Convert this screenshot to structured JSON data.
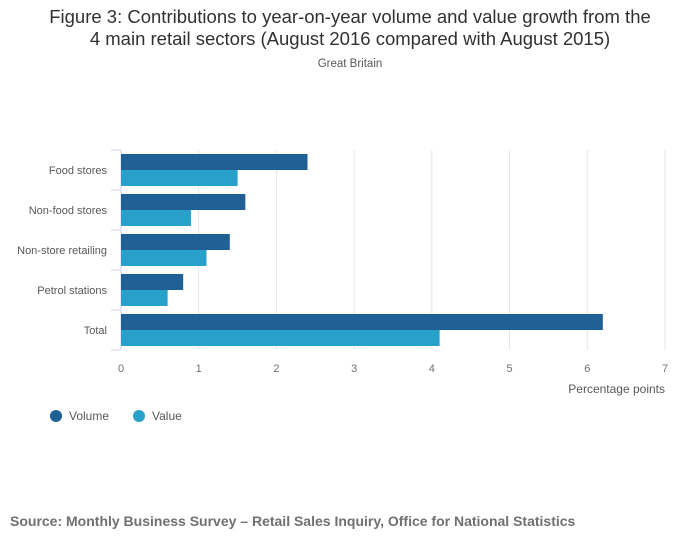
{
  "chart_data": {
    "type": "bar",
    "orientation": "horizontal",
    "title": "Figure 3: Contributions to year-on-year volume and value growth from the 4 main retail sectors (August 2016 compared with August 2015)",
    "title_lines": [
      "Figure 3: Contributions to year-on-year volume and value growth from the",
      "4 main retail sectors (August 2016 compared with August 2015)"
    ],
    "subtitle": "Great Britain",
    "categories": [
      "Food stores",
      "Non-food stores",
      "Non-store retailing",
      "Petrol stations",
      "Total"
    ],
    "series": [
      {
        "name": "Volume",
        "color": "#206095",
        "values": [
          2.4,
          1.6,
          1.4,
          0.8,
          6.2
        ]
      },
      {
        "name": "Value",
        "color": "#27a0cc",
        "values": [
          1.5,
          0.9,
          1.1,
          0.6,
          4.1
        ]
      }
    ],
    "xlabel": "Percentage points",
    "ylabel": "",
    "xlim": [
      0,
      7
    ],
    "xticks": [
      "0",
      "1",
      "2",
      "3",
      "4",
      "5",
      "6",
      "7"
    ],
    "grid": true,
    "legend_position": "bottom-left",
    "source": "Source: Monthly Business Survey – Retail Sales Inquiry, Office for National Statistics"
  }
}
